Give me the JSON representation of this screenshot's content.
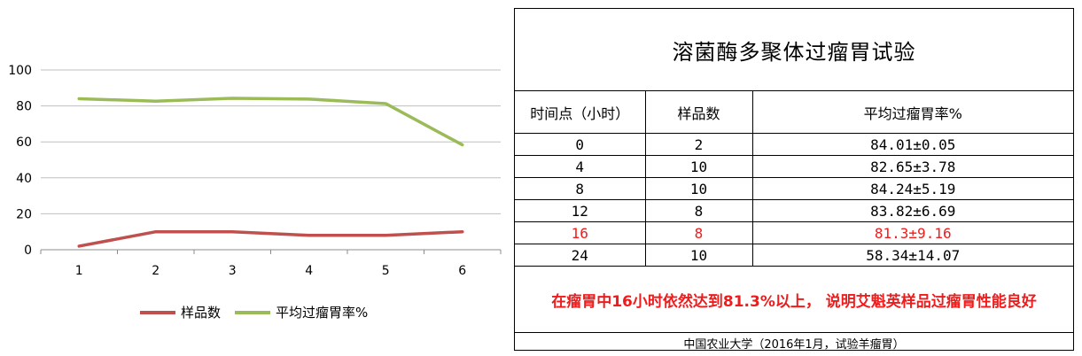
{
  "chart_data": {
    "type": "line",
    "categories": [
      "1",
      "2",
      "3",
      "4",
      "5",
      "6"
    ],
    "ylim": [
      0,
      100
    ],
    "yticks": [
      0,
      20,
      40,
      60,
      80,
      100
    ],
    "grid": true,
    "legend_position": "bottom",
    "series": [
      {
        "name": "样品数",
        "color": "#c0504d",
        "values": [
          2,
          10,
          10,
          8,
          8,
          10
        ]
      },
      {
        "name": "平均过瘤胃率%",
        "color": "#9bbb59",
        "values": [
          84.01,
          82.65,
          84.24,
          83.82,
          81.3,
          58.34
        ]
      }
    ]
  },
  "table": {
    "title": "溶菌酶多聚体过瘤胃试验",
    "headers": [
      "时间点（小时）",
      "样品数",
      "平均过瘤胃率%"
    ],
    "rows": [
      [
        "0",
        "2",
        "84.01±0.05"
      ],
      [
        "4",
        "10",
        "82.65±3.78"
      ],
      [
        "8",
        "10",
        "84.24±5.19"
      ],
      [
        "12",
        "8",
        "83.82±6.69"
      ],
      [
        "16",
        "8",
        "81.3±9.16"
      ],
      [
        "24",
        "10",
        "58.34±14.07"
      ]
    ],
    "highlight_row": 4,
    "highlight_color": "#ee1c1c",
    "note": "在瘤胃中16小时依然达到81.3%以上， 说明艾魁英样品过瘤胃性能良好",
    "source": "中国农业大学（2016年1月，试验羊瘤胃）"
  }
}
